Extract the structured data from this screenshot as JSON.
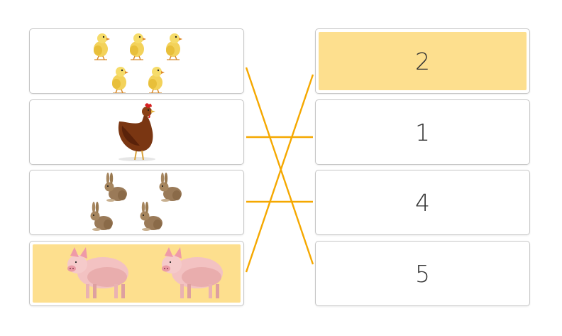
{
  "left_items": [
    {
      "animal": "chick",
      "icon": "chick-icon",
      "count": 5
    },
    {
      "animal": "hen",
      "icon": "hen-icon",
      "count": 1
    },
    {
      "animal": "rabbit",
      "icon": "rabbit-icon",
      "count": 4
    },
    {
      "animal": "pig",
      "icon": "pig-icon",
      "count": 2,
      "selected": true
    }
  ],
  "right_items": [
    {
      "label": "2",
      "selected": true
    },
    {
      "label": "1"
    },
    {
      "label": "4"
    },
    {
      "label": "5"
    }
  ],
  "connections": [
    {
      "from_left": 0,
      "to_right": 3
    },
    {
      "from_left": 1,
      "to_right": 1
    },
    {
      "from_left": 2,
      "to_right": 2
    },
    {
      "from_left": 3,
      "to_right": 0
    }
  ],
  "colors": {
    "connector": "#f5a800",
    "selected_fill": "#fddf8e",
    "card_border": "#c6c6c6",
    "number_text": "#333333"
  }
}
